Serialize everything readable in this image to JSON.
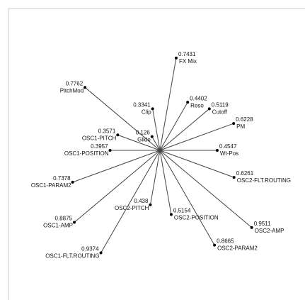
{
  "chart_data": {
    "type": "radial",
    "categories": [
      "FX Mix",
      "Reso",
      "Cutoff",
      "PM",
      "Wt-Pos",
      "OSC2-FLT.ROUTING",
      "OSC2-AMP",
      "OSC2-PARAM2",
      "OSC2-POSITION",
      "OSC2-PITCH",
      "OSC1-FLT.ROUTING",
      "OSC1-AMP",
      "OSC1-PARAM2",
      "OSC1-POSITION",
      "OSC1-PITCH",
      "PitchMod",
      "Glide",
      "Clip"
    ],
    "values": [
      0.7431,
      0.4402,
      0.5119,
      0.6228,
      0.4547,
      0.6261,
      0.9511,
      0.8665,
      0.5154,
      0.438,
      0.9374,
      0.8875,
      0.7378,
      0.3957,
      0.3571,
      0.7762,
      0.126,
      0.3341
    ],
    "rlim": [
      0,
      1
    ],
    "color": "#444444"
  }
}
